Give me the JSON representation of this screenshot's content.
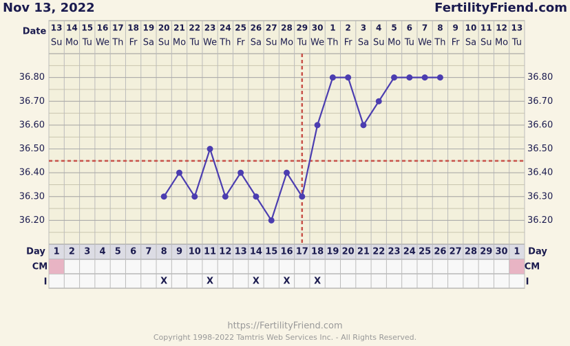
{
  "chart_data": {
    "type": "line",
    "title": "Nov 13, 2022",
    "brand": "FertilityFriend.com",
    "date_label": "Date",
    "day_label": "Day",
    "cm_label": "CM",
    "intercourse_label": "I",
    "categories": [
      "13",
      "14",
      "15",
      "16",
      "17",
      "18",
      "19",
      "20",
      "21",
      "22",
      "23",
      "24",
      "25",
      "26",
      "27",
      "28",
      "29",
      "30",
      "1",
      "2",
      "3",
      "4",
      "5",
      "6",
      "7",
      "8",
      "9",
      "10",
      "11",
      "12",
      "13"
    ],
    "weekdays": [
      "Su",
      "Mo",
      "Tu",
      "We",
      "Th",
      "Fr",
      "Sa",
      "Su",
      "Mo",
      "Tu",
      "We",
      "Th",
      "Fr",
      "Sa",
      "Su",
      "Mo",
      "Tu",
      "We",
      "Th",
      "Fr",
      "Sa",
      "Su",
      "Mo",
      "Tu",
      "We",
      "Th",
      "Fr",
      "Sa",
      "Su",
      "Mo",
      "Tu"
    ],
    "cycle_days": [
      "1",
      "2",
      "3",
      "4",
      "5",
      "6",
      "7",
      "8",
      "9",
      "10",
      "11",
      "12",
      "13",
      "14",
      "15",
      "16",
      "17",
      "18",
      "19",
      "20",
      "21",
      "22",
      "23",
      "24",
      "25",
      "26",
      "27",
      "28",
      "29",
      "30",
      "1"
    ],
    "series": [
      {
        "color": "#4b3db0",
        "values": [
          null,
          null,
          null,
          null,
          null,
          null,
          null,
          36.3,
          36.4,
          36.3,
          36.5,
          36.3,
          36.4,
          36.3,
          36.2,
          36.4,
          36.3,
          36.6,
          36.8,
          36.8,
          36.6,
          36.7,
          36.8,
          36.8,
          36.8,
          36.8,
          null,
          null,
          null,
          null,
          null
        ]
      }
    ],
    "ylim": [
      36.1,
      36.9
    ],
    "yticks": [
      {
        "value": 36.2,
        "label": "36.20"
      },
      {
        "value": 36.3,
        "label": "36.30"
      },
      {
        "value": 36.4,
        "label": "36.40"
      },
      {
        "value": 36.5,
        "label": "36.50"
      },
      {
        "value": 36.6,
        "label": "36.60"
      },
      {
        "value": 36.7,
        "label": "36.70"
      },
      {
        "value": 36.8,
        "label": "36.80"
      }
    ],
    "coverline": 36.45,
    "ovulation_day": 17,
    "reference_color": "#c8524a",
    "cm": [
      "#e8b4c4",
      null,
      null,
      null,
      null,
      null,
      null,
      null,
      null,
      null,
      null,
      null,
      null,
      null,
      null,
      null,
      null,
      null,
      null,
      null,
      null,
      null,
      null,
      null,
      null,
      null,
      null,
      null,
      null,
      null,
      "#e8b4c4"
    ],
    "intercourse": [
      null,
      null,
      null,
      null,
      null,
      null,
      null,
      "X",
      null,
      null,
      "X",
      null,
      null,
      "X",
      null,
      "X",
      null,
      "X",
      null,
      null,
      null,
      null,
      null,
      null,
      null,
      null,
      null,
      null,
      null,
      null,
      null
    ],
    "footer_url": "https://FertilityFriend.com",
    "footer_copyright": "Copyright 1998-2022 Tamtris Web Services Inc. - All Rights Reserved."
  }
}
